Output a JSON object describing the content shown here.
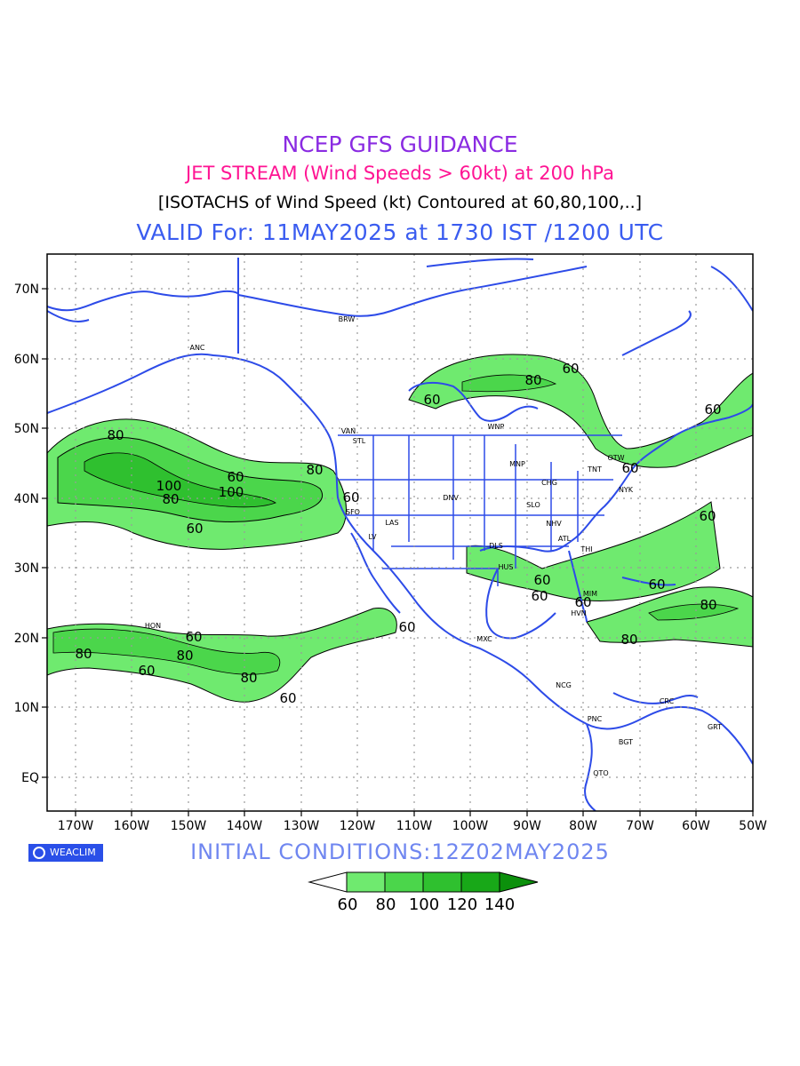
{
  "header": {
    "title": "NCEP GFS GUIDANCE",
    "subtitle": "JET STREAM (Wind Speeds > 60kt) at 200 hPa",
    "description": "[ISOTACHS of Wind Speed (kt) Contoured at 60,80,100,..]",
    "valid": "VALID For: 11MAY2025 at 1730 IST /1200 UTC"
  },
  "map": {
    "extent": {
      "lon": [
        -175,
        -50
      ],
      "lat": [
        -5,
        75
      ]
    },
    "lat_labels": [
      "70N",
      "60N",
      "50N",
      "40N",
      "30N",
      "20N",
      "10N",
      "EQ"
    ],
    "lon_labels": [
      "170W",
      "160W",
      "150W",
      "140W",
      "130W",
      "120W",
      "110W",
      "100W",
      "90W",
      "80W",
      "70W",
      "60W",
      "50W"
    ],
    "station_labels": [
      "ANC",
      "BRW",
      "VAN",
      "STL",
      "WNP",
      "MNP",
      "OTW",
      "TNT",
      "NYK",
      "CHG",
      "SLO",
      "DNV",
      "SFO",
      "LV",
      "LAS",
      "NHV",
      "ATL",
      "THI",
      "DLS",
      "HUS",
      "MIM",
      "HVN",
      "MXC",
      "HON",
      "NCG",
      "PNC",
      "BGT",
      "QTO",
      "CRC",
      "GRT"
    ],
    "contour_labels": [
      "80",
      "60",
      "100",
      "80",
      "100",
      "60",
      "80",
      "60",
      "60",
      "80",
      "60",
      "60",
      "60",
      "60",
      "80",
      "60",
      "60",
      "60",
      "80",
      "60",
      "60",
      "80",
      "60",
      "80",
      "60",
      "80",
      "60"
    ],
    "colors": {
      "coast": "#2d4be8",
      "level60": "#6fea6f",
      "level80": "#4bd64b",
      "level100": "#2fc02f",
      "level120": "#18a818",
      "level140": "#0c900c",
      "grid": "#9a9a9a"
    }
  },
  "colorbar": {
    "labels": [
      "60",
      "80",
      "100",
      "120",
      "140"
    ],
    "colors": [
      "#ffffff",
      "#6fea6f",
      "#4bd64b",
      "#2fc02f",
      "#18a818",
      "#0c900c"
    ]
  },
  "footer": {
    "badge": "WEACLIM",
    "initial_conditions": "INITIAL CONDITIONS:12Z02MAY2025"
  }
}
